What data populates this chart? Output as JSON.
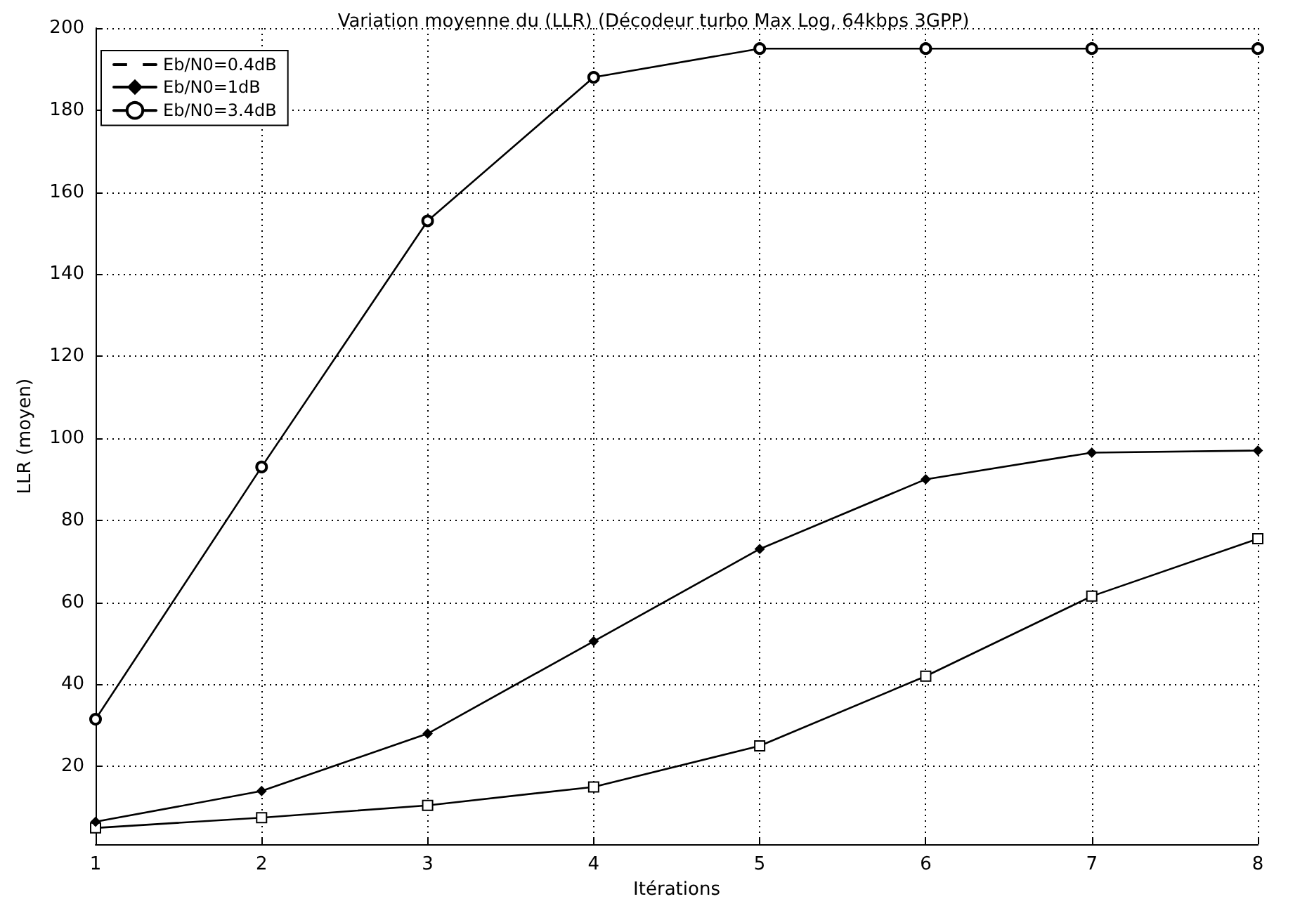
{
  "chart_data": {
    "type": "line",
    "title": "Variation moyenne du (LLR) (Décodeur turbo Max Log, 64kbps 3GPP)",
    "xlabel": "Itérations",
    "ylabel": "LLR (moyen)",
    "x": [
      1,
      2,
      3,
      4,
      5,
      6,
      7,
      8
    ],
    "series": [
      {
        "name": "Eb/N0=0.4dB",
        "color": "#000000",
        "marker": "square",
        "values": [
          5,
          7.5,
          10.5,
          15,
          25,
          42,
          61.5,
          75.5
        ]
      },
      {
        "name": "Eb/N0=1dB",
        "color": "#000000",
        "marker": "diamond",
        "values": [
          6.5,
          14,
          28,
          50.5,
          73,
          90,
          96.5,
          97
        ]
      },
      {
        "name": "Eb/N0=3.4dB",
        "color": "#000000",
        "marker": "circle",
        "values": [
          31.5,
          93,
          153,
          188,
          195,
          195,
          195,
          195
        ]
      }
    ],
    "xlim": [
      1,
      8
    ],
    "xticks": [
      1,
      2,
      3,
      4,
      5,
      6,
      7,
      8
    ],
    "ylim": [
      1,
      200
    ],
    "yticks": [
      20,
      40,
      60,
      80,
      100,
      120,
      140,
      160,
      180,
      200
    ],
    "grid": true,
    "legend": "top left",
    "line_style": "solid"
  }
}
